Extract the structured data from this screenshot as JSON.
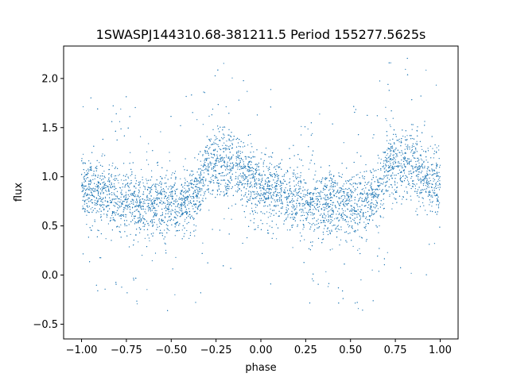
{
  "chart_data": {
    "type": "scatter",
    "title": "1SWASPJ144310.68-381211.5 Period 155277.5625s",
    "xlabel": "phase",
    "ylabel": "flux",
    "xlim": [
      -1.1,
      1.1
    ],
    "ylim": [
      -0.65,
      2.33
    ],
    "xticks": [
      -1.0,
      -0.75,
      -0.5,
      -0.25,
      0.0,
      0.25,
      0.5,
      0.75,
      1.0
    ],
    "xtick_labels": [
      "−1.00",
      "−0.75",
      "−0.50",
      "−0.25",
      "0.00",
      "0.25",
      "0.50",
      "0.75",
      "1.00"
    ],
    "yticks": [
      -0.5,
      0.0,
      0.5,
      1.0,
      1.5,
      2.0
    ],
    "ytick_labels": [
      "−0.5",
      "0.0",
      "0.5",
      "1.0",
      "1.5",
      "2.0"
    ],
    "grid": false,
    "point_color": "#1f77b4",
    "series": [
      {
        "x": [
          -1.0,
          -0.95,
          -0.9,
          -0.85,
          -0.8,
          -0.75,
          -0.7,
          -0.65,
          -0.6,
          -0.55,
          -0.5,
          -0.45,
          -0.4,
          -0.35,
          -0.3,
          -0.25,
          -0.2,
          -0.15,
          -0.1,
          -0.05,
          0.0,
          0.05,
          0.1,
          0.15,
          0.2,
          0.25,
          0.3,
          0.35,
          0.4,
          0.45,
          0.5,
          0.55,
          0.6,
          0.65,
          0.7,
          0.75,
          0.8,
          0.85,
          0.9,
          0.95,
          1.0
        ],
        "y": [
          0.9,
          0.85,
          0.82,
          0.78,
          0.75,
          0.74,
          0.73,
          0.72,
          0.71,
          0.7,
          0.7,
          0.71,
          0.73,
          0.82,
          1.1,
          1.13,
          1.15,
          1.1,
          1.02,
          0.95,
          0.9,
          0.85,
          0.82,
          0.78,
          0.75,
          0.74,
          0.73,
          0.72,
          0.71,
          0.7,
          0.7,
          0.71,
          0.73,
          0.82,
          1.1,
          1.13,
          1.15,
          1.1,
          1.02,
          0.95,
          0.9
        ]
      }
    ]
  }
}
